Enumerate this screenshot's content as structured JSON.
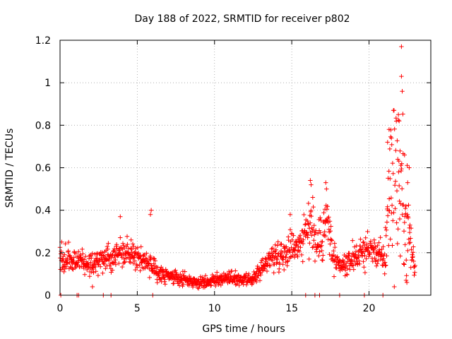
{
  "chart_data": {
    "type": "scatter",
    "title": "Day 188 of 2022, SRMTID for receiver p802",
    "xlabel": "GPS time / hours",
    "ylabel": "SRMTID / TECUs",
    "xlim": [
      0,
      24
    ],
    "ylim": [
      0,
      1.2
    ],
    "xticks": [
      0,
      5,
      10,
      15,
      20
    ],
    "yticks": [
      0,
      0.2,
      0.4,
      0.6,
      0.8,
      1,
      1.2
    ],
    "ytick_labels": [
      "0",
      "0.2",
      "0.4",
      "0.6",
      "0.8",
      "1",
      "1.2"
    ],
    "grid": true,
    "marker": "+",
    "series_color": "#ff0000",
    "seed": 188,
    "profile": [
      [
        0.0,
        0.18
      ],
      [
        0.5,
        0.17
      ],
      [
        1.0,
        0.16
      ],
      [
        1.5,
        0.15
      ],
      [
        2.0,
        0.14
      ],
      [
        2.5,
        0.16
      ],
      [
        3.0,
        0.18
      ],
      [
        3.5,
        0.19
      ],
      [
        4.0,
        0.22
      ],
      [
        4.5,
        0.2
      ],
      [
        5.0,
        0.18
      ],
      [
        5.5,
        0.17
      ],
      [
        6.0,
        0.12
      ],
      [
        6.5,
        0.1
      ],
      [
        7.0,
        0.09
      ],
      [
        7.5,
        0.08
      ],
      [
        8.0,
        0.075
      ],
      [
        8.5,
        0.065
      ],
      [
        9.0,
        0.06
      ],
      [
        9.5,
        0.065
      ],
      [
        10.0,
        0.07
      ],
      [
        10.5,
        0.075
      ],
      [
        11.0,
        0.08
      ],
      [
        11.5,
        0.075
      ],
      [
        12.0,
        0.07
      ],
      [
        12.5,
        0.07
      ],
      [
        13.0,
        0.12
      ],
      [
        13.5,
        0.17
      ],
      [
        14.0,
        0.19
      ],
      [
        14.5,
        0.2
      ],
      [
        15.0,
        0.23
      ],
      [
        15.5,
        0.25
      ],
      [
        16.0,
        0.3
      ],
      [
        16.3,
        0.36
      ],
      [
        16.6,
        0.22
      ],
      [
        17.0,
        0.3
      ],
      [
        17.3,
        0.35
      ],
      [
        17.6,
        0.2
      ],
      [
        18.0,
        0.13
      ],
      [
        18.5,
        0.14
      ],
      [
        19.0,
        0.18
      ],
      [
        19.5,
        0.2
      ],
      [
        20.0,
        0.22
      ],
      [
        20.5,
        0.2
      ],
      [
        21.0,
        0.17
      ],
      [
        21.4,
        0.55
      ],
      [
        21.8,
        0.6
      ],
      [
        22.2,
        0.45
      ],
      [
        22.5,
        0.35
      ],
      [
        22.8,
        0.18
      ],
      [
        23.0,
        0.15
      ]
    ],
    "outliers": [
      [
        22.1,
        1.17
      ],
      [
        22.1,
        1.03
      ],
      [
        22.15,
        0.96
      ],
      [
        21.9,
        0.85
      ],
      [
        21.95,
        0.82
      ],
      [
        21.3,
        0.78
      ],
      [
        21.45,
        0.74
      ],
      [
        21.2,
        0.72
      ],
      [
        22.3,
        0.66
      ],
      [
        22.6,
        0.6
      ],
      [
        22.5,
        0.53
      ],
      [
        16.2,
        0.54
      ],
      [
        16.25,
        0.52
      ],
      [
        17.2,
        0.53
      ],
      [
        17.25,
        0.5
      ],
      [
        14.9,
        0.38
      ],
      [
        5.9,
        0.4
      ],
      [
        5.85,
        0.38
      ],
      [
        3.9,
        0.37
      ],
      [
        22.4,
        0.07
      ],
      [
        22.45,
        0.06
      ],
      [
        2.1,
        0.04
      ]
    ],
    "zero_points": [
      0.05,
      1.1,
      1.2,
      2.8,
      3.3,
      6.0,
      15.9,
      16.5,
      16.8,
      18.1,
      19.7,
      20.9
    ]
  }
}
